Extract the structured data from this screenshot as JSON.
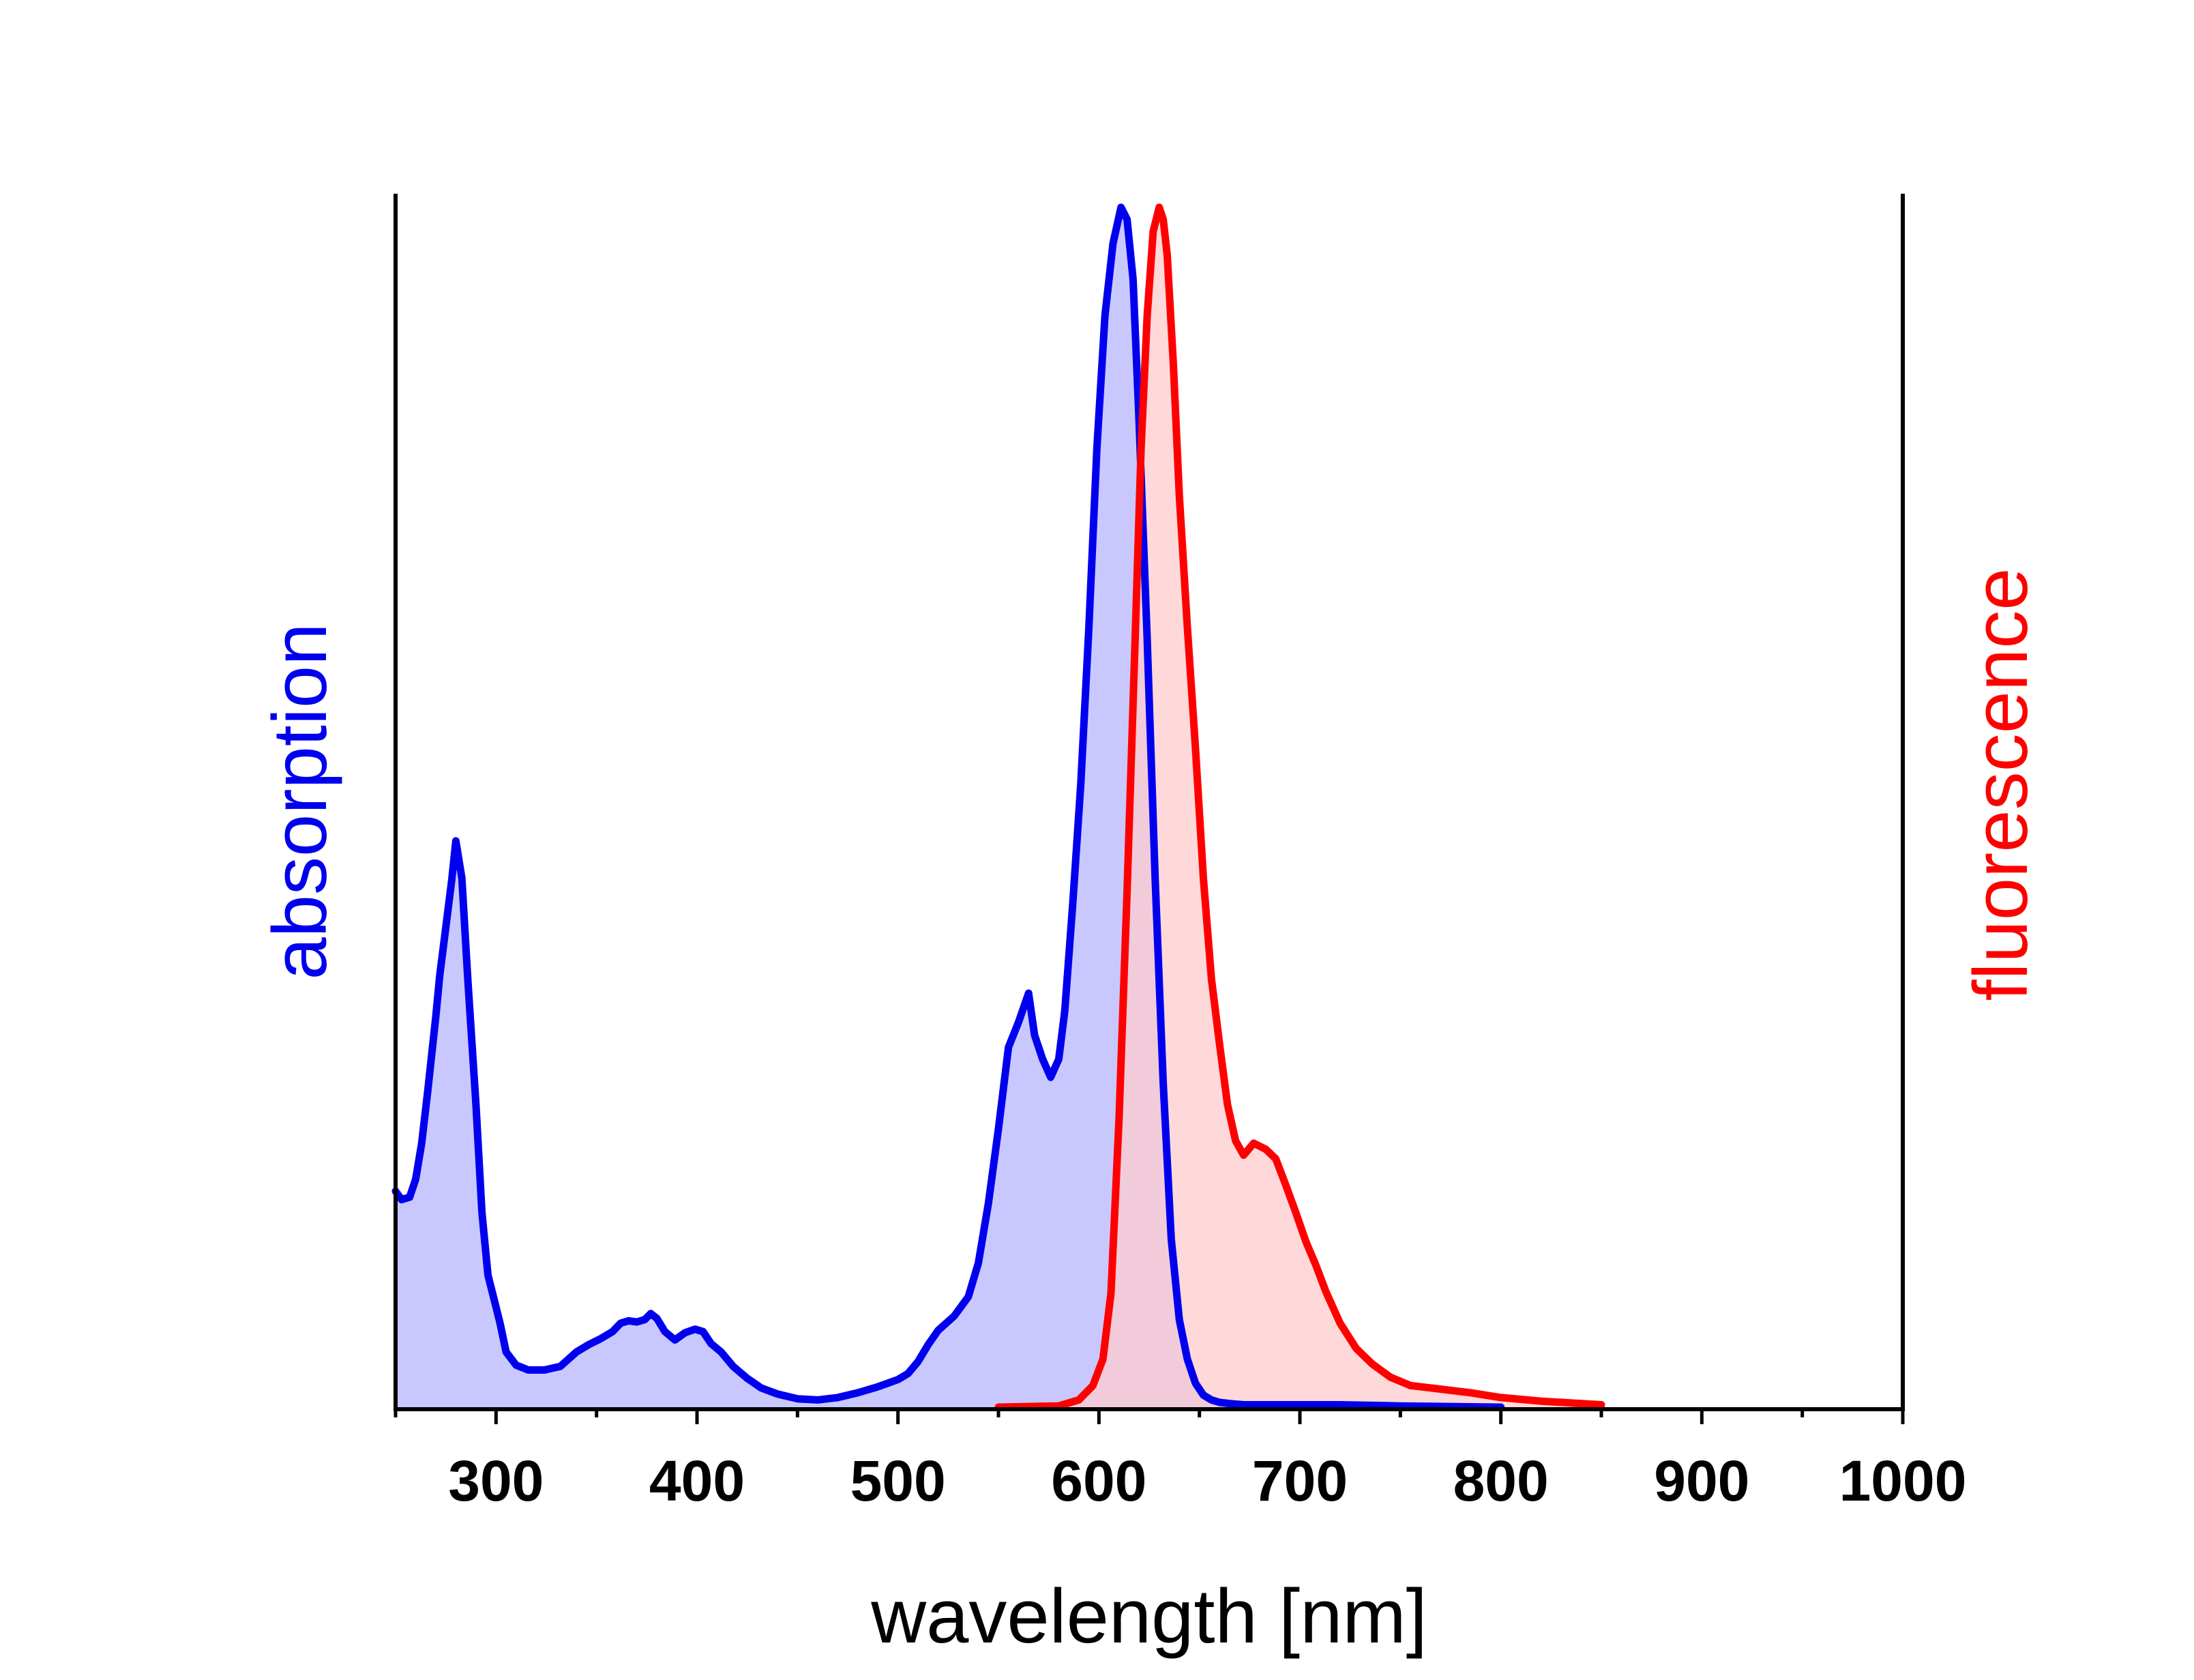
{
  "chart_data": {
    "type": "area",
    "xlabel": "wavelength [nm]",
    "ylabel_left": "absorption",
    "ylabel_right": "fluorescence",
    "xlim": [
      250,
      1000
    ],
    "ylim": [
      0,
      1
    ],
    "x_ticks": [
      300,
      400,
      500,
      600,
      700,
      800,
      900,
      1000
    ],
    "x_tick_labels": [
      "300",
      "400",
      "500",
      "600",
      "700",
      "800",
      "900",
      "1000"
    ],
    "grid": false,
    "series": [
      {
        "name": "absorption",
        "color": "#0000ee",
        "fill": "#c8c8ff",
        "x": [
          250,
          253,
          257,
          260,
          263,
          266,
          270,
          272,
          275,
          278,
          280,
          283,
          286,
          290,
          293,
          296,
          299,
          302,
          305,
          310,
          316,
          324,
          332,
          340,
          346,
          352,
          358,
          362,
          366,
          370,
          374,
          377,
          380,
          384,
          389,
          394,
          399,
          403,
          407,
          412,
          418,
          425,
          432,
          440,
          450,
          460,
          470,
          480,
          490,
          500,
          505,
          510,
          515,
          520,
          528,
          535,
          540,
          545,
          550,
          555,
          560,
          565,
          568,
          572,
          576,
          580,
          583,
          587,
          591,
          595,
          599,
          603,
          607,
          611,
          614,
          617,
          620,
          624,
          628,
          632,
          636,
          640,
          644,
          648,
          652,
          656,
          660,
          665,
          672,
          680,
          690,
          700,
          720,
          750,
          800
        ],
        "y": [
          0.18,
          0.173,
          0.175,
          0.19,
          0.22,
          0.263,
          0.325,
          0.36,
          0.4,
          0.44,
          0.472,
          0.441,
          0.355,
          0.252,
          0.162,
          0.11,
          0.09,
          0.07,
          0.046,
          0.035,
          0.031,
          0.031,
          0.034,
          0.046,
          0.052,
          0.057,
          0.063,
          0.07,
          0.072,
          0.071,
          0.073,
          0.078,
          0.074,
          0.063,
          0.056,
          0.062,
          0.065,
          0.063,
          0.053,
          0.046,
          0.034,
          0.024,
          0.016,
          0.011,
          0.007,
          0.006,
          0.008,
          0.012,
          0.017,
          0.023,
          0.028,
          0.038,
          0.052,
          0.064,
          0.076,
          0.092,
          0.12,
          0.17,
          0.232,
          0.3,
          0.321,
          0.345,
          0.31,
          0.29,
          0.275,
          0.29,
          0.33,
          0.42,
          0.52,
          0.65,
          0.8,
          0.91,
          0.97,
          1.0,
          0.99,
          0.94,
          0.82,
          0.64,
          0.44,
          0.27,
          0.14,
          0.073,
          0.04,
          0.02,
          0.01,
          0.006,
          0.004,
          0.003,
          0.002,
          0.002,
          0.002,
          0.002,
          0.002,
          0.001,
          0.0
        ]
      },
      {
        "name": "fluorescence",
        "color": "#ff0000",
        "fill": "#ffcccc",
        "x": [
          550,
          580,
          590,
          597,
          602,
          606,
          610,
          614,
          618,
          621,
          624,
          627,
          630,
          632,
          634,
          637,
          640,
          644,
          648,
          652,
          656,
          660,
          664,
          668,
          672,
          677,
          683,
          688,
          693,
          698,
          703,
          708,
          713,
          720,
          728,
          736,
          745,
          755,
          770,
          785,
          800,
          820,
          840,
          850
        ],
        "y": [
          0.0,
          0.001,
          0.006,
          0.018,
          0.04,
          0.095,
          0.24,
          0.43,
          0.64,
          0.8,
          0.91,
          0.98,
          1.0,
          0.99,
          0.96,
          0.87,
          0.76,
          0.65,
          0.55,
          0.44,
          0.357,
          0.303,
          0.252,
          0.222,
          0.21,
          0.22,
          0.215,
          0.207,
          0.185,
          0.162,
          0.138,
          0.118,
          0.096,
          0.07,
          0.049,
          0.036,
          0.025,
          0.018,
          0.015,
          0.012,
          0.008,
          0.005,
          0.003,
          0.002
        ]
      }
    ]
  }
}
